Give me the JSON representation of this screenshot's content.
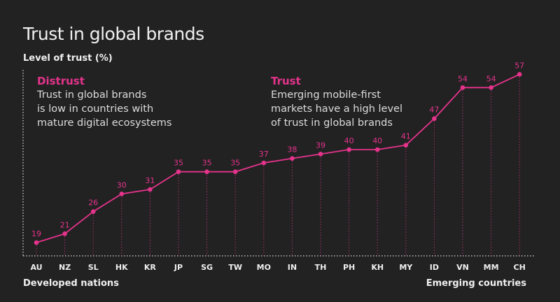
{
  "chart_data": {
    "type": "line",
    "title": "Trust in global brands",
    "ylabel": "Level of trust (%)",
    "categories": [
      "AU",
      "NZ",
      "SL",
      "HK",
      "KR",
      "JP",
      "SG",
      "TW",
      "MO",
      "IN",
      "TH",
      "PH",
      "KH",
      "MY",
      "ID",
      "VN",
      "MM",
      "CH"
    ],
    "values": [
      19,
      21,
      26,
      30,
      31,
      35,
      35,
      35,
      37,
      38,
      39,
      40,
      40,
      41,
      47,
      54,
      54,
      57
    ],
    "ylim": [
      16,
      58
    ],
    "grid": false,
    "color": "#e5338c",
    "annotations": [
      {
        "heading": "Distrust",
        "lines": [
          "Trust in global brands",
          "is low in countries with",
          "mature digital ecosystems"
        ]
      },
      {
        "heading": "Trust",
        "lines": [
          "Emerging mobile-first",
          "markets have a high level",
          "of trust in global brands"
        ]
      }
    ],
    "x_left_label": "Developed nations",
    "x_right_label": "Emerging countries"
  }
}
